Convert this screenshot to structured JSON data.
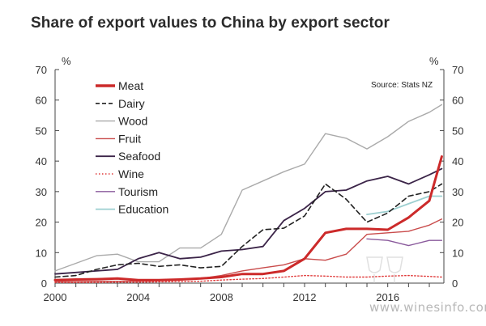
{
  "chart_data": {
    "type": "line",
    "title": "Share of export values to China by export sector",
    "y_unit_left": "%",
    "y_unit_right": "%",
    "source": "Source: Stats NZ",
    "ylim": [
      0,
      70
    ],
    "yticks": [
      0,
      10,
      20,
      30,
      40,
      50,
      60,
      70
    ],
    "xlim": [
      2000,
      2018.7
    ],
    "xticks": [
      2000,
      2004,
      2008,
      2012,
      2016
    ],
    "legend_position": "top-left",
    "grid": false,
    "series": [
      {
        "name": "Meat",
        "color": "#cc2a2a",
        "dash": "solid",
        "width": 3,
        "x": [
          2000,
          2001,
          2002,
          2003,
          2004,
          2005,
          2006,
          2007,
          2008,
          2009,
          2010,
          2011,
          2012,
          2013,
          2014,
          2015,
          2016,
          2017,
          2018,
          2018.6
        ],
        "y": [
          1,
          1.2,
          1.3,
          1.5,
          1,
          1,
          1.2,
          1.5,
          2,
          3,
          3,
          4,
          8,
          16.5,
          17.8,
          17.8,
          17.5,
          21.5,
          27,
          41.5
        ]
      },
      {
        "name": "Dairy",
        "color": "#222222",
        "dash": "dashed",
        "width": 1.6,
        "x": [
          2000,
          2001,
          2002,
          2003,
          2004,
          2005,
          2006,
          2007,
          2008,
          2009,
          2010,
          2011,
          2012,
          2013,
          2014,
          2015,
          2016,
          2017,
          2018,
          2018.6
        ],
        "y": [
          2,
          2.5,
          4.5,
          6,
          6.5,
          5.5,
          6,
          5,
          5.5,
          12,
          17.5,
          18,
          22,
          32.5,
          27.5,
          20,
          23,
          28.5,
          30,
          32.5
        ]
      },
      {
        "name": "Wood",
        "color": "#aaaaaa",
        "dash": "solid",
        "width": 1.4,
        "x": [
          2000,
          2001,
          2002,
          2003,
          2004,
          2005,
          2006,
          2007,
          2008,
          2009,
          2010,
          2011,
          2012,
          2013,
          2014,
          2015,
          2016,
          2017,
          2018,
          2018.6
        ],
        "y": [
          4,
          6.5,
          9,
          9.5,
          7,
          7,
          11.5,
          11.5,
          16,
          30.5,
          33.5,
          36.5,
          39,
          49,
          47.5,
          44,
          48,
          53,
          56,
          58.5
        ]
      },
      {
        "name": "Fruit",
        "color": "#c94b4b",
        "dash": "solid",
        "width": 1.4,
        "x": [
          2000,
          2001,
          2002,
          2003,
          2004,
          2005,
          2006,
          2007,
          2008,
          2009,
          2010,
          2011,
          2012,
          2013,
          2014,
          2015,
          2016,
          2017,
          2018,
          2018.6
        ],
        "y": [
          0.5,
          0.5,
          0.6,
          0.6,
          0.6,
          0.8,
          1,
          1.5,
          2.5,
          4,
          5,
          6,
          8,
          7.5,
          9.5,
          16,
          16.5,
          17,
          19,
          21
        ]
      },
      {
        "name": "Seafood",
        "color": "#3b2448",
        "dash": "solid",
        "width": 1.8,
        "x": [
          2000,
          2001,
          2002,
          2003,
          2004,
          2005,
          2006,
          2007,
          2008,
          2009,
          2010,
          2011,
          2012,
          2013,
          2014,
          2015,
          2016,
          2017,
          2018,
          2018.6
        ],
        "y": [
          3,
          3.5,
          4,
          4.5,
          8,
          10,
          8,
          8.5,
          10.5,
          11,
          12,
          20.5,
          24.5,
          30,
          30.5,
          33.5,
          35,
          32.5,
          35.5,
          37.5
        ]
      },
      {
        "name": "Wine",
        "color": "#e03c3c",
        "dash": "dotted",
        "width": 1.4,
        "x": [
          2000,
          2001,
          2002,
          2003,
          2004,
          2005,
          2006,
          2007,
          2008,
          2009,
          2010,
          2011,
          2012,
          2013,
          2014,
          2015,
          2016,
          2017,
          2018,
          2018.6
        ],
        "y": [
          0.2,
          0.2,
          0.2,
          0.3,
          0.3,
          0.4,
          0.5,
          0.6,
          1,
          1.3,
          1.5,
          2,
          2.5,
          2.3,
          2,
          2,
          2.3,
          2.5,
          2.2,
          2
        ]
      },
      {
        "name": "Tourism",
        "color": "#8a5a9c",
        "dash": "solid",
        "width": 1.4,
        "x": [
          2015,
          2016,
          2017,
          2018,
          2018.6
        ],
        "y": [
          14.5,
          14,
          12.3,
          14,
          14
        ]
      },
      {
        "name": "Education",
        "color": "#9ccfd0",
        "dash": "solid",
        "width": 1.8,
        "x": [
          2015,
          2016,
          2017,
          2018,
          2018.6
        ],
        "y": [
          22.5,
          23.5,
          26,
          28.5,
          28.5
        ]
      }
    ]
  },
  "watermark": "www.winesinfo.com"
}
